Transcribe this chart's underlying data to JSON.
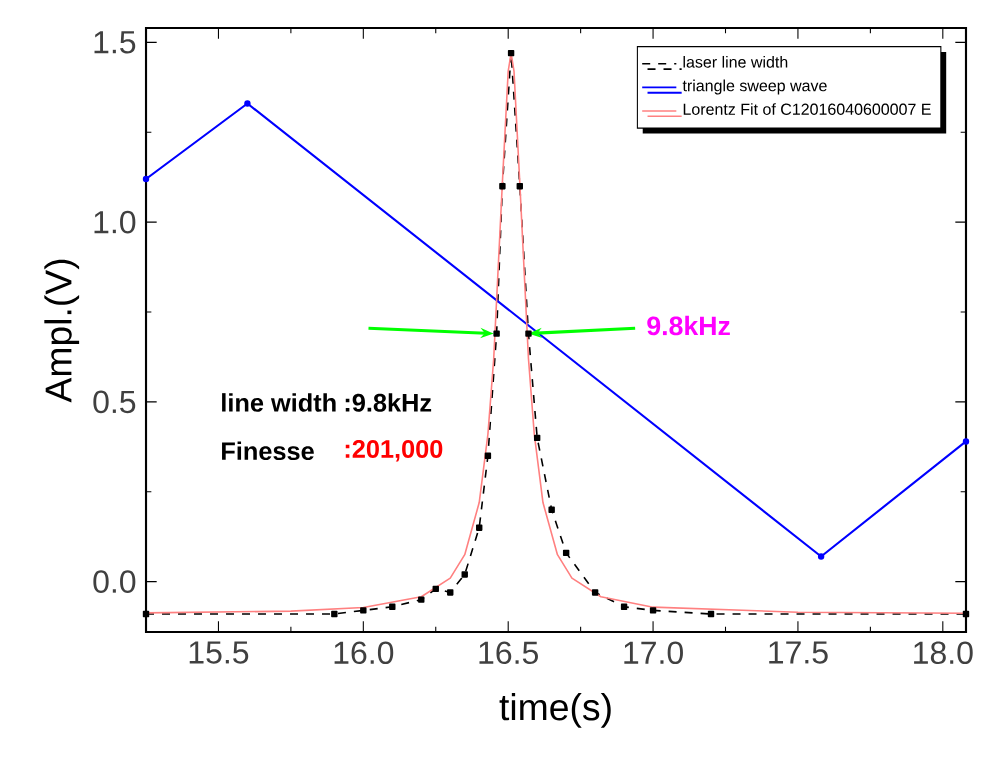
{
  "chart_data": {
    "type": "line",
    "xlabel": "time(s)",
    "ylabel": "Ampl.(V)",
    "xlim": [
      15.25,
      18.08
    ],
    "ylim": [
      -0.14,
      1.54
    ],
    "xticks": [
      15.5,
      {
        "value": 16,
        "label": "16.0"
      },
      16.5,
      {
        "value": 17,
        "label": "17.0"
      },
      17.5,
      {
        "value": 18,
        "label": "18.0"
      }
    ],
    "yticks": [
      {
        "value": 0,
        "label": "0.0"
      },
      0.5,
      {
        "value": 1,
        "label": "1.0"
      },
      1.5
    ],
    "legend": "top right",
    "grid": false,
    "series": [
      {
        "name": "laser line width",
        "color": "#000000",
        "marker": "square",
        "line_style": "dashed",
        "x": [
          15.25,
          15.9,
          16.0,
          16.1,
          16.2,
          16.25,
          16.3,
          16.35,
          16.4,
          16.43,
          16.46,
          16.48,
          16.51,
          16.54,
          16.57,
          16.6,
          16.65,
          16.7,
          16.8,
          16.9,
          17.0,
          17.2,
          18.08
        ],
        "values": [
          -0.09,
          -0.09,
          -0.08,
          -0.07,
          -0.05,
          -0.02,
          -0.03,
          0.02,
          0.15,
          0.35,
          0.69,
          1.1,
          1.47,
          1.1,
          0.69,
          0.4,
          0.2,
          0.08,
          -0.03,
          -0.07,
          -0.08,
          -0.09,
          -0.09
        ]
      },
      {
        "name": "triangle sweep wave",
        "color": "#0000ff",
        "marker": "circle",
        "x": [
          15.25,
          15.6,
          17.58,
          18.08
        ],
        "values": [
          1.12,
          1.33,
          0.07,
          0.39
        ]
      },
      {
        "name": "Lorentz Fit of C12016040600007 E",
        "color": "#ff8080",
        "marker": "none",
        "x": [
          15.25,
          15.75,
          16.0,
          16.2,
          16.3,
          16.35,
          16.4,
          16.43,
          16.45,
          16.48,
          16.5,
          16.51,
          16.52,
          16.54,
          16.57,
          16.59,
          16.62,
          16.67,
          16.72,
          16.82,
          17.0,
          17.5,
          18.08
        ],
        "values": [
          -0.087,
          -0.082,
          -0.072,
          -0.042,
          0.01,
          0.075,
          0.22,
          0.41,
          0.62,
          1.11,
          1.42,
          1.47,
          1.42,
          1.11,
          0.62,
          0.41,
          0.22,
          0.075,
          0.01,
          -0.042,
          -0.071,
          -0.085,
          -0.088
        ]
      }
    ],
    "annotations": [
      {
        "text": "9.8kHz",
        "x": 16.57,
        "y": 0.69
      },
      "line width",
      ":9.8kHz",
      "Finesse",
      ":201,000"
    ]
  }
}
